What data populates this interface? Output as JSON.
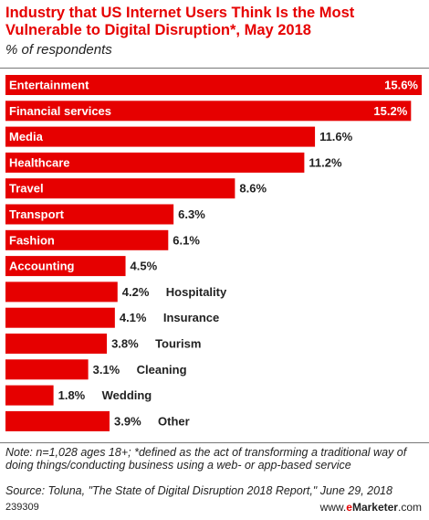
{
  "title": "Industry that US Internet Users Think Is the Most Vulnerable to Digital Disruption*, May 2018",
  "subtitle": "% of respondents",
  "footer": {
    "note": "Note: n=1,028 ages 18+; *defined as the act of transforming a traditional way of doing things/conducting business using a web- or app-based service",
    "source": "Source: Toluna, \"The State of Digital Disruption 2018 Report,\" June 29, 2018",
    "chart_id": "239309",
    "brand_prefix": "www.",
    "brand_e": "e",
    "brand_name": "Marketer",
    "brand_suffix": ".com"
  },
  "colors": {
    "bar": "#e60000",
    "title": "#e60000",
    "text": "#222222"
  },
  "chart_data": {
    "type": "bar",
    "orientation": "horizontal",
    "categories": [
      "Entertainment",
      "Financial services",
      "Media",
      "Healthcare",
      "Travel",
      "Transport",
      "Fashion",
      "Accounting",
      "Hospitality",
      "Insurance",
      "Tourism",
      "Cleaning",
      "Wedding",
      "Other"
    ],
    "values": [
      15.6,
      15.2,
      11.6,
      11.2,
      8.6,
      6.3,
      6.1,
      4.5,
      4.2,
      4.1,
      3.8,
      3.1,
      1.8,
      3.9
    ],
    "value_labels": [
      "15.6%",
      "15.2%",
      "11.6%",
      "11.2%",
      "8.6%",
      "6.3%",
      "6.1%",
      "4.5%",
      "4.2%",
      "4.1%",
      "3.8%",
      "3.1%",
      "1.8%",
      "3.9%"
    ],
    "xlim": [
      0,
      15.6
    ],
    "grid": false,
    "legend": "none"
  }
}
